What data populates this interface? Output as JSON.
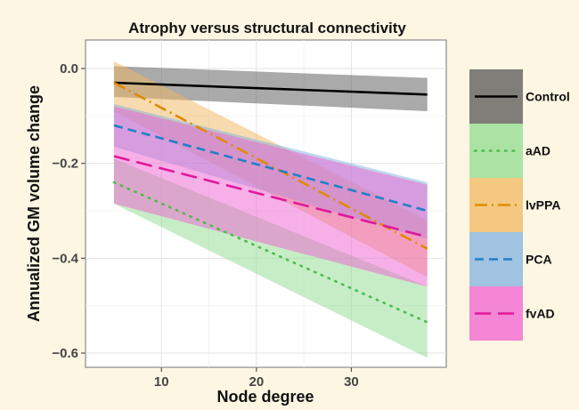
{
  "chart_data": {
    "type": "line",
    "title": "Atrophy versus structural connectivity",
    "xlabel": "Node degree",
    "ylabel": "Annualized GM volume change",
    "xlim": [
      2,
      40
    ],
    "ylim": [
      -0.63,
      0.06
    ],
    "xticks": [
      10,
      20,
      30
    ],
    "yticks": [
      0.0,
      -0.2,
      -0.4,
      -0.6
    ],
    "ytick_labels": [
      "0.0",
      "−0.2",
      "−0.4",
      "−0.6"
    ],
    "grid": true,
    "legend_position": "right",
    "series": [
      {
        "name": "Control",
        "color": "#000000",
        "band_color": "#555555",
        "dash": "solid",
        "x": [
          5,
          38
        ],
        "y": [
          -0.03,
          -0.055
        ],
        "lower": [
          -0.06,
          -0.09
        ],
        "upper": [
          0.005,
          -0.02
        ]
      },
      {
        "name": "aAD",
        "color": "#4dbb4d",
        "band_color": "#8fdc8f",
        "dash": "dotted",
        "x": [
          5,
          38
        ],
        "y": [
          -0.24,
          -0.535
        ],
        "lower": [
          -0.285,
          -0.61
        ],
        "upper": [
          -0.19,
          -0.46
        ]
      },
      {
        "name": "lvPPA",
        "color": "#e08a00",
        "band_color": "#f0b860",
        "dash": "dotdash",
        "x": [
          5,
          38
        ],
        "y": [
          -0.03,
          -0.38
        ],
        "lower": [
          -0.09,
          -0.44
        ],
        "upper": [
          0.015,
          -0.32
        ]
      },
      {
        "name": "PCA",
        "color": "#2080c8",
        "band_color": "#7fb2e0",
        "dash": "dashed",
        "x": [
          5,
          38
        ],
        "y": [
          -0.12,
          -0.3
        ],
        "lower": [
          -0.165,
          -0.36
        ],
        "upper": [
          -0.075,
          -0.24
        ]
      },
      {
        "name": "fvAD",
        "color": "#e0189a",
        "band_color": "#f060d0",
        "dash": "longdash",
        "x": [
          5,
          38
        ],
        "y": [
          -0.185,
          -0.355
        ],
        "lower": [
          -0.285,
          -0.46
        ],
        "upper": [
          -0.08,
          -0.245
        ]
      }
    ]
  }
}
